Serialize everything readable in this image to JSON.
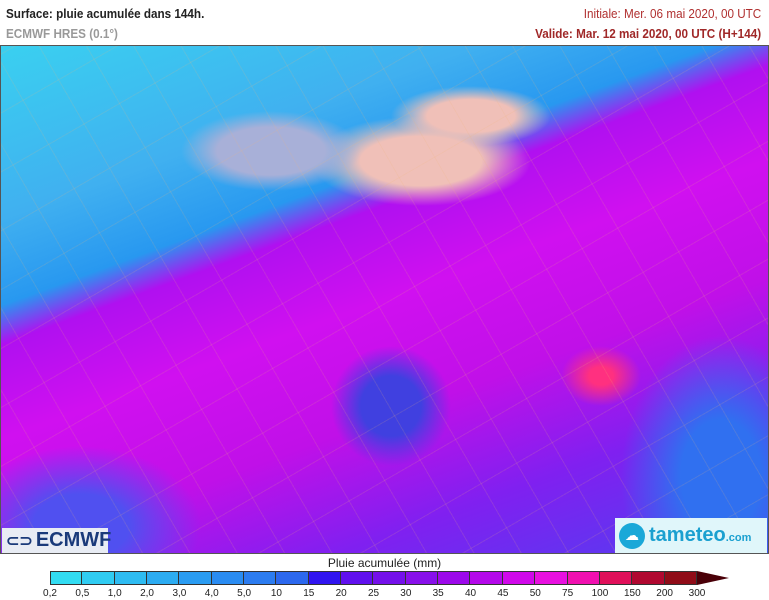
{
  "header": {
    "title": "Surface: pluie acumulée dans 144h.",
    "model": "ECMWF HRES (0.1°)",
    "initial": "Initiale: Mer. 06 mai 2020, 00 UTC",
    "valid": "Valide: Mar. 12 mai 2020, 00 UTC (H+144)"
  },
  "logos": {
    "ecmwf": "ECMWF",
    "tameteo": "tameteo",
    "tameteo_suffix": ".com"
  },
  "legend": {
    "title": "Pluie acumulée (mm)",
    "labels": [
      "0,2",
      "0,5",
      "1,0",
      "2,0",
      "3,0",
      "4,0",
      "5,0",
      "10",
      "15",
      "20",
      "25",
      "30",
      "35",
      "40",
      "45",
      "50",
      "75",
      "100",
      "150",
      "200",
      "300"
    ],
    "colors": [
      "#38f0f0",
      "#32dcf2",
      "#30ccf2",
      "#2ebcf2",
      "#2cacf2",
      "#2a9cf2",
      "#2a8cf2",
      "#2c7cf0",
      "#2c68ee",
      "#3014f0",
      "#6010ee",
      "#7410ea",
      "#8810ea",
      "#9c08ea",
      "#b408ea",
      "#d008ea",
      "#e810e0",
      "#f010b0",
      "#e0105a",
      "#b00830",
      "#900c18"
    ],
    "arrow_color": "#4a0008"
  }
}
